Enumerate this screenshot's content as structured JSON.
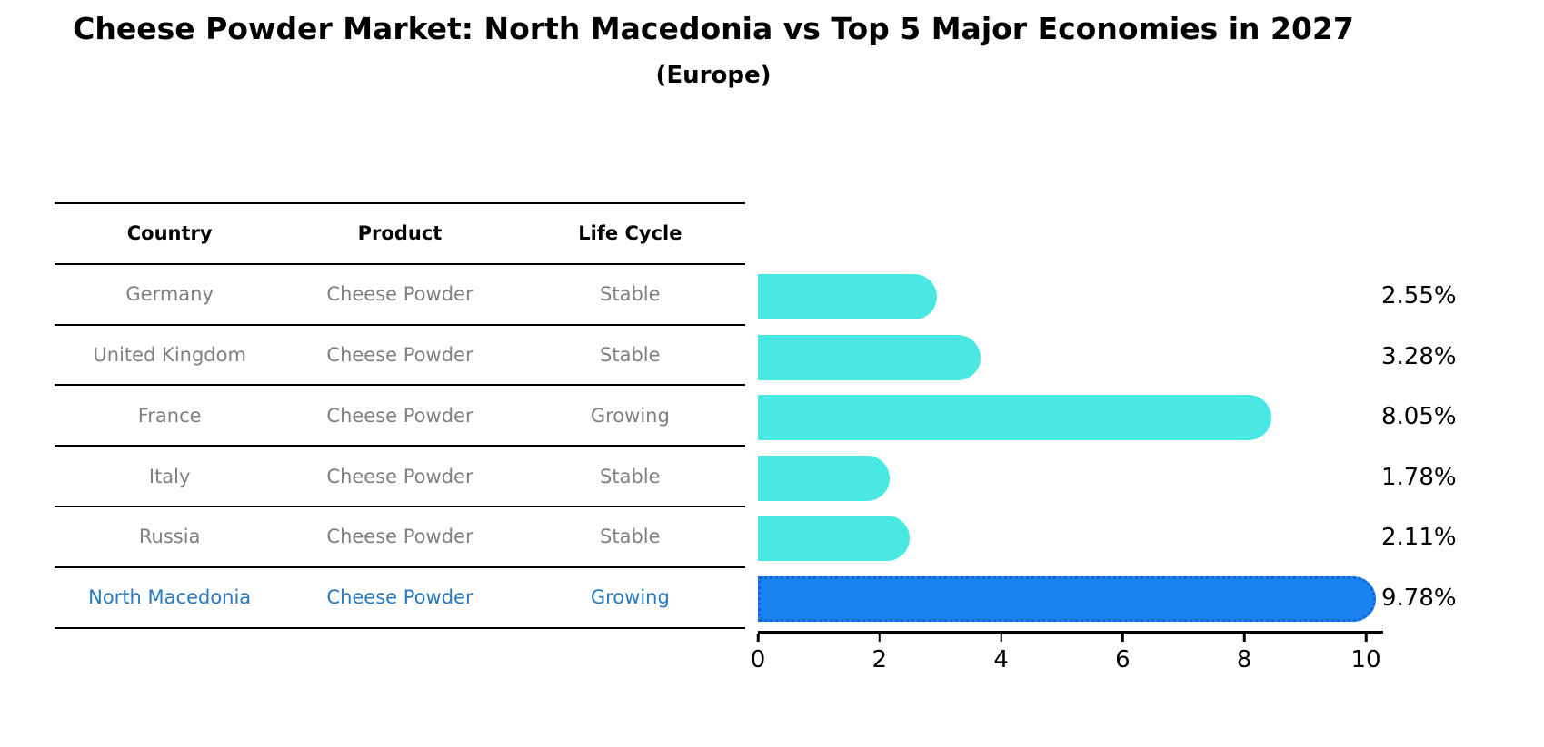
{
  "header": {
    "title": "Cheese Powder Market: North Macedonia vs Top 5 Major Economies in 2027",
    "subtitle": "(Europe)"
  },
  "table": {
    "headers": [
      "Country",
      "Product",
      "Life Cycle"
    ],
    "rows": [
      {
        "country": "Germany",
        "product": "Cheese Powder",
        "life_cycle": "Stable",
        "highlight": false
      },
      {
        "country": "United Kingdom",
        "product": "Cheese Powder",
        "life_cycle": "Stable",
        "highlight": false
      },
      {
        "country": "France",
        "product": "Cheese Powder",
        "life_cycle": "Growing",
        "highlight": false
      },
      {
        "country": "Italy",
        "product": "Cheese Powder",
        "life_cycle": "Stable",
        "highlight": false
      },
      {
        "country": "Russia",
        "product": "Cheese Powder",
        "life_cycle": "Stable",
        "highlight": false
      },
      {
        "country": "North Macedonia",
        "product": "Cheese Powder",
        "life_cycle": "Growing",
        "highlight": true
      }
    ]
  },
  "chart_data": {
    "type": "bar",
    "orientation": "horizontal",
    "title": "Cheese Powder Market: North Macedonia vs Top 5 Major Economies in 2027",
    "subtitle": "(Europe)",
    "categories": [
      "Germany",
      "United Kingdom",
      "France",
      "Italy",
      "Russia",
      "North Macedonia"
    ],
    "values": [
      2.55,
      3.28,
      8.05,
      1.78,
      2.11,
      9.78
    ],
    "value_labels": [
      "2.55%",
      "3.28%",
      "8.05%",
      "1.78%",
      "2.11%",
      "9.78%"
    ],
    "highlight_index": 5,
    "xticks": [
      0,
      2,
      4,
      6,
      8,
      10
    ],
    "xlim": [
      0,
      10.28
    ],
    "grid": false,
    "legend": false,
    "bar_color": "#4ae8e2",
    "highlight_color": "#1a83f0",
    "highlight_edge_color": "#1264d6",
    "table_text_color": "#808080",
    "highlight_text_color": "#2878be"
  }
}
